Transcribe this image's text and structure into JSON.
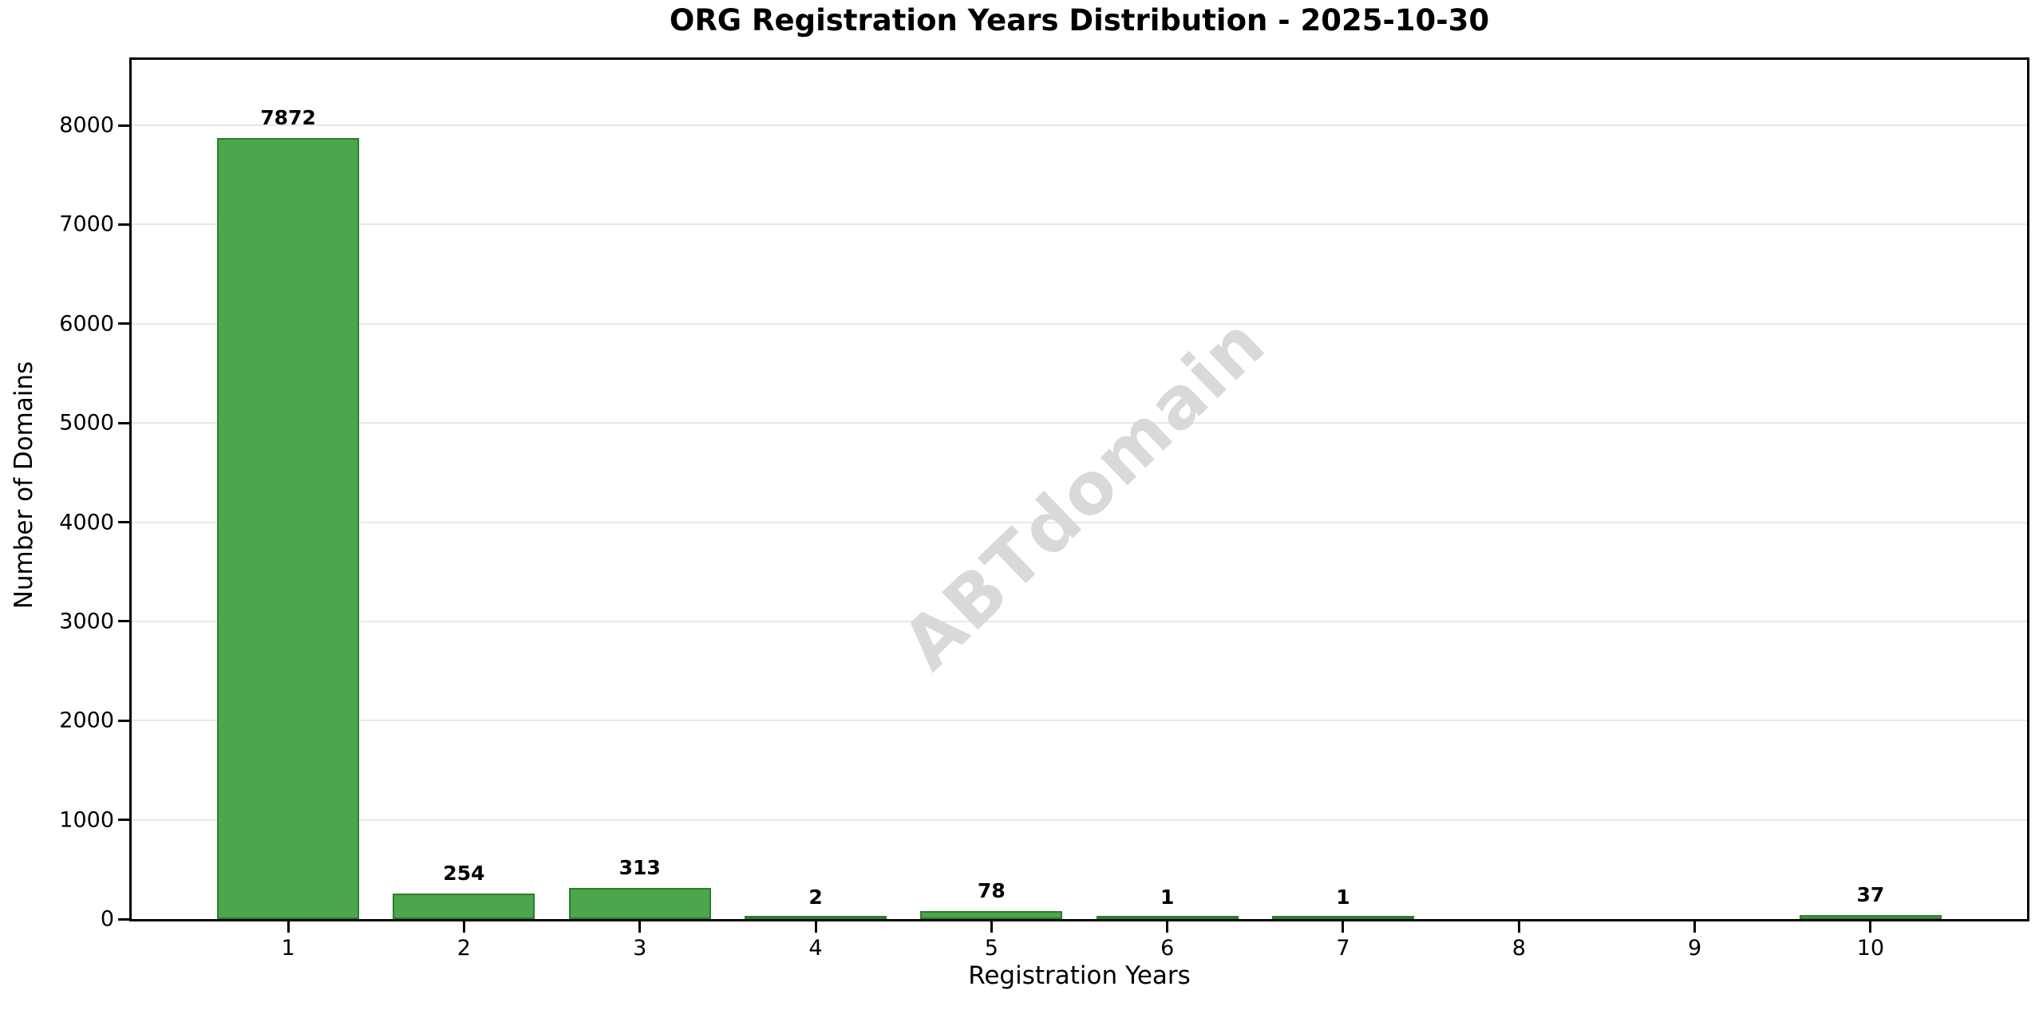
{
  "figure": {
    "background": "#ffffff",
    "watermark": {
      "text": "ABTdomain",
      "color": "#d9d9d9",
      "rotation_deg": -44
    }
  },
  "chart_data": {
    "type": "bar",
    "title": "ORG Registration Years Distribution - 2025-10-30",
    "xlabel": "Registration Years",
    "ylabel": "Number of Domains",
    "categories": [
      "1",
      "2",
      "3",
      "4",
      "5",
      "6",
      "7",
      "8",
      "9",
      "10"
    ],
    "values": [
      7872,
      254,
      313,
      2,
      78,
      1,
      1,
      0,
      0,
      37
    ],
    "bar_labels": [
      "7872",
      "254",
      "313",
      "2",
      "78",
      "1",
      "1",
      "",
      "",
      "37"
    ],
    "yticks": [
      0,
      1000,
      2000,
      3000,
      4000,
      5000,
      6000,
      7000,
      8000
    ],
    "ylim": [
      0,
      8660
    ],
    "grid": "horizontal",
    "gridline_color": "#e7e7e7",
    "legend": "none",
    "bar_color": "#4CA64C",
    "bar_edge_color": "#2E7D2E"
  }
}
